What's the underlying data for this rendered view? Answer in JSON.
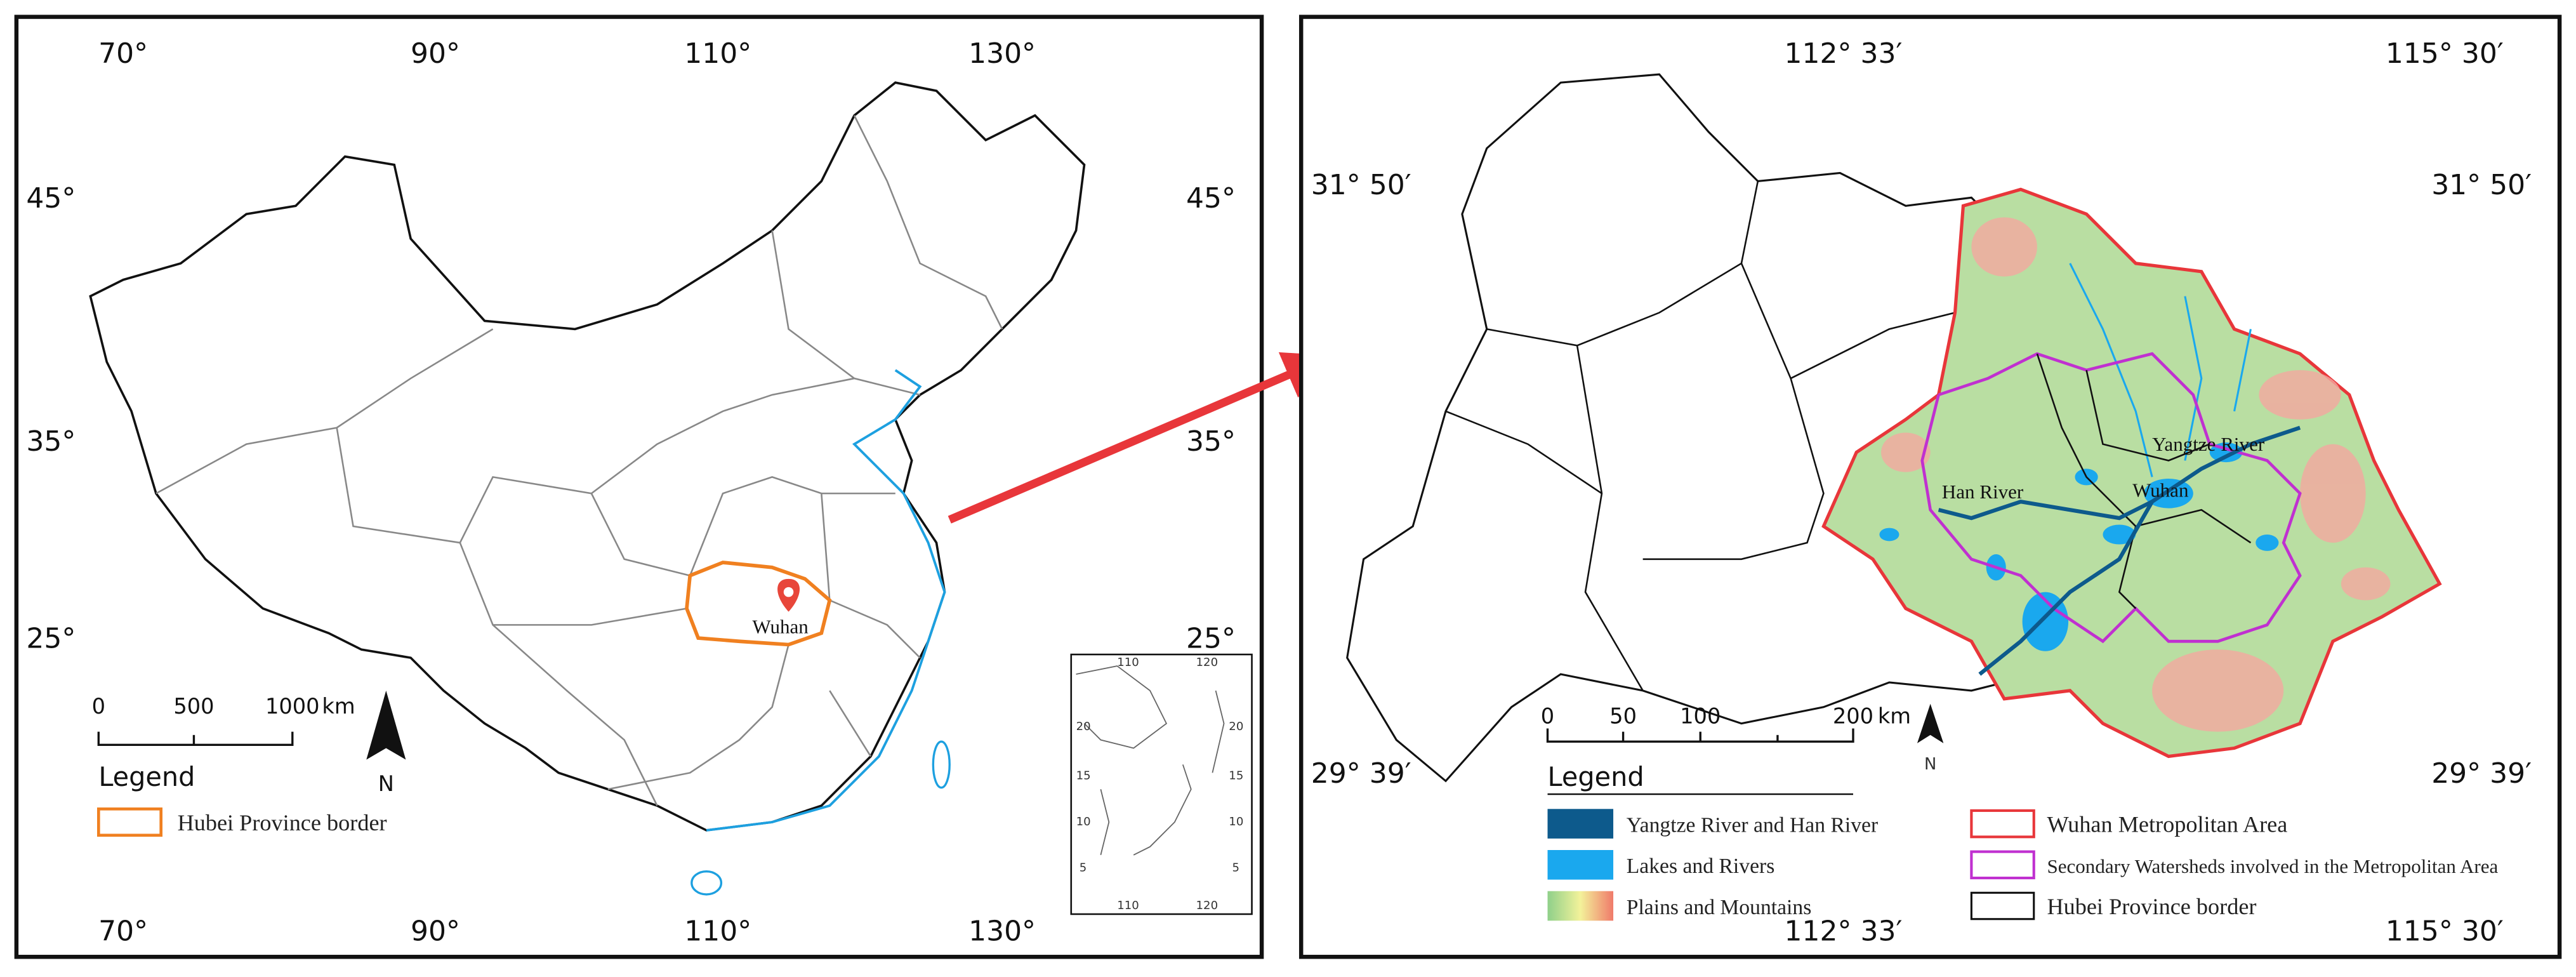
{
  "left_map": {
    "lon_labels_top": [
      "70°",
      "90°",
      "110°",
      "130°"
    ],
    "lon_labels_bottom": [
      "70°",
      "90°",
      "110°",
      "130°"
    ],
    "lat_labels_left": [
      "45°",
      "35°",
      "25°"
    ],
    "lat_labels_right": [
      "45°",
      "35°",
      "25°"
    ],
    "city": "Wuhan",
    "scale_bar": {
      "ticks": [
        "0",
        "500",
        "1000"
      ],
      "unit": "km"
    },
    "north": "N",
    "legend": {
      "title": "Legend",
      "items": [
        "Hubei Province border"
      ]
    },
    "inset": {
      "lon_labels_top": [
        "110",
        "120"
      ],
      "lon_labels_bottom": [
        "110",
        "120"
      ],
      "lat_labels_left": [
        "20",
        "15",
        "10",
        "5"
      ],
      "lat_labels_right": [
        "20",
        "15",
        "10",
        "5"
      ]
    }
  },
  "right_map": {
    "lon_labels_top": [
      "112° 33′",
      "115° 30′"
    ],
    "lon_labels_bottom": [
      "112° 33′",
      "115° 30′"
    ],
    "lat_labels_left": [
      "31° 50′",
      "29° 39′"
    ],
    "lat_labels_right": [
      "31° 50′",
      "29° 39′"
    ],
    "places": [
      "Yangtze River",
      "Han River",
      "Wuhan"
    ],
    "scale_bar": {
      "ticks": [
        "0",
        "50",
        "100",
        "200"
      ],
      "unit": "km"
    },
    "north": "N",
    "legend": {
      "title": "Legend",
      "items": [
        "Yangtze River and Han River",
        "Lakes and Rivers",
        "Plains and Mountains",
        "Wuhan Metropolitan Area",
        "Secondary Watersheds involved in the Metropolitan Area",
        "Hubei Province border"
      ]
    }
  }
}
